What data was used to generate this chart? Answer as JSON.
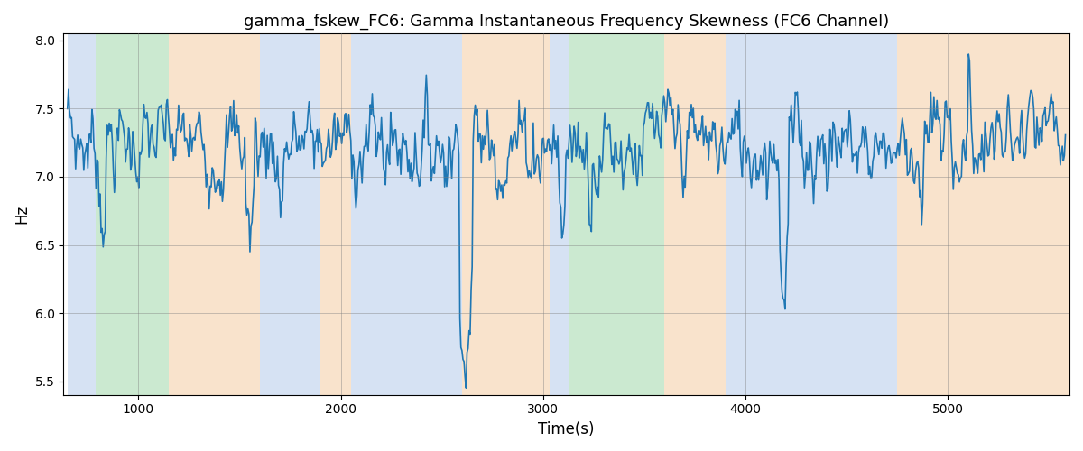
{
  "title": "gamma_fskew_FC6: Gamma Instantaneous Frequency Skewness (FC6 Channel)",
  "xlabel": "Time(s)",
  "ylabel": "Hz",
  "xlim": [
    630,
    5600
  ],
  "ylim": [
    5.4,
    8.05
  ],
  "yticks": [
    5.5,
    6.0,
    6.5,
    7.0,
    7.5,
    8.0
  ],
  "xticks": [
    1000,
    2000,
    3000,
    4000,
    5000
  ],
  "line_color": "#1f77b4",
  "line_width": 1.2,
  "bg_bands": [
    {
      "xmin": 650,
      "xmax": 790,
      "color": "#aec6e8",
      "alpha": 0.5
    },
    {
      "xmin": 790,
      "xmax": 1150,
      "color": "#98d4a3",
      "alpha": 0.5
    },
    {
      "xmin": 1150,
      "xmax": 1600,
      "color": "#f5c89a",
      "alpha": 0.5
    },
    {
      "xmin": 1600,
      "xmax": 1900,
      "color": "#aec6e8",
      "alpha": 0.5
    },
    {
      "xmin": 1900,
      "xmax": 2050,
      "color": "#f5c89a",
      "alpha": 0.5
    },
    {
      "xmin": 2050,
      "xmax": 2600,
      "color": "#aec6e8",
      "alpha": 0.5
    },
    {
      "xmin": 2600,
      "xmax": 3030,
      "color": "#f5c89a",
      "alpha": 0.5
    },
    {
      "xmin": 3030,
      "xmax": 3130,
      "color": "#aec6e8",
      "alpha": 0.5
    },
    {
      "xmin": 3130,
      "xmax": 3600,
      "color": "#98d4a3",
      "alpha": 0.5
    },
    {
      "xmin": 3600,
      "xmax": 3900,
      "color": "#f5c89a",
      "alpha": 0.5
    },
    {
      "xmin": 3900,
      "xmax": 4750,
      "color": "#aec6e8",
      "alpha": 0.5
    },
    {
      "xmin": 4750,
      "xmax": 5600,
      "color": "#f5c89a",
      "alpha": 0.5
    }
  ],
  "n_points": 980,
  "x_start": 650,
  "x_end": 5580,
  "seed": 7
}
